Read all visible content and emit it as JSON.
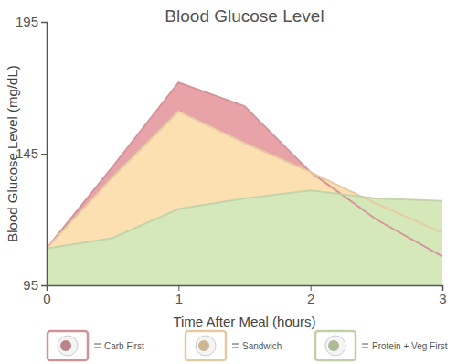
{
  "chart_data": {
    "type": "area",
    "title": "Blood Glucose Level",
    "x_label": "Time After Meal (hours)",
    "y_label": "Blood Glucose Level (mg/dL)",
    "x": [
      0,
      0.5,
      1,
      1.5,
      2,
      2.5,
      3
    ],
    "series": [
      {
        "name": "Carb First",
        "color": "#e8a3a9",
        "values": [
          109,
          140,
          172,
          163,
          138,
          120,
          106
        ]
      },
      {
        "name": "Sandwich",
        "color": "#fde0b2",
        "values": [
          109,
          136,
          161,
          149,
          138,
          126,
          115
        ]
      },
      {
        "name": "Protein + Veg First",
        "color": "#d5e8ba",
        "values": [
          109,
          113,
          124,
          128,
          131,
          128,
          127
        ]
      }
    ],
    "xlim": [
      0,
      3
    ],
    "xticks": [
      0,
      1,
      2,
      3
    ],
    "ylim": [
      95,
      195
    ],
    "yticks": [
      95,
      145,
      195
    ],
    "grid": false,
    "legend": "bottom"
  }
}
